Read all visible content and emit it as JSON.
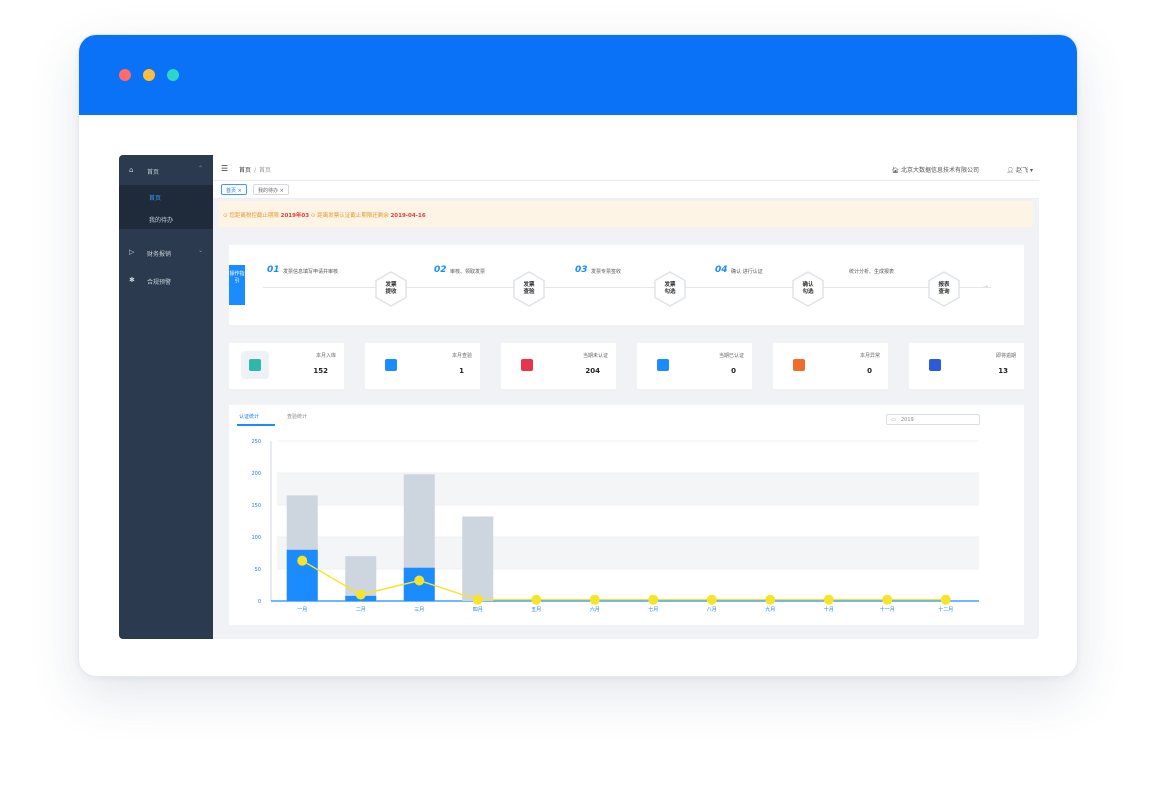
{
  "window": {
    "dots": [
      "#ff6a6a",
      "#ffbd3d",
      "#2fd6c7"
    ],
    "titlebar_color": "#0a72f6"
  },
  "sidebar": {
    "home": {
      "label": "首页",
      "icon": "home-icon"
    },
    "home_children": [
      {
        "label": "首页",
        "active": true
      },
      {
        "label": "我的待办",
        "active": false
      }
    ],
    "items": [
      {
        "label": "财务报销",
        "icon": "receipt-icon"
      },
      {
        "label": "合规预警",
        "icon": "warning-icon"
      }
    ]
  },
  "topbar": {
    "breadcrumb": {
      "home": "首页",
      "sep": "/",
      "current": "首页"
    },
    "company": "北京大数据信息技术有限公司",
    "user": "赵飞"
  },
  "tags": [
    {
      "label": "首页",
      "active": true
    },
    {
      "label": "我的待办",
      "active": false
    }
  ],
  "notice": {
    "text1": "您距离税控截止期限",
    "highlight1": "2019年03",
    "text2": "距离发票认证截止期限还剩余",
    "highlight2": "2019-04-16"
  },
  "flow": {
    "badge": "操作指引",
    "steps": [
      {
        "num": "01",
        "desc": "发票信息填写申请并审核",
        "hex": [
          "发票",
          "提收"
        ]
      },
      {
        "num": "02",
        "desc": "审核、领取发票",
        "hex": [
          "发票",
          "查验"
        ]
      },
      {
        "num": "03",
        "desc": "发票专票签收",
        "hex": [
          "发票",
          "勾选"
        ]
      },
      {
        "num": "04",
        "desc": "确认 进行认证",
        "hex": [
          "确认",
          "勾选"
        ]
      },
      {
        "num": "",
        "desc": "统计分析、生成报表",
        "hex": [
          "报表",
          "查询"
        ]
      }
    ]
  },
  "cards": [
    {
      "label": "本月入库",
      "value": "152",
      "icon": "storage-icon",
      "color": "#2fb8a8",
      "bg": "#eef2f6"
    },
    {
      "label": "本月查验",
      "value": "1",
      "icon": "verify-icon",
      "color": "#1a8cff",
      "bg": "#ffffff"
    },
    {
      "label": "当期未认证",
      "value": "204",
      "icon": "unverified-icon",
      "color": "#e8344e",
      "bg": "#ffffff"
    },
    {
      "label": "当期已认证",
      "value": "0",
      "icon": "verified-icon",
      "color": "#1a8cff",
      "bg": "#ffffff"
    },
    {
      "label": "本月异常",
      "value": "0",
      "icon": "alarm-icon",
      "color": "#f26b2a",
      "bg": "#ffffff"
    },
    {
      "label": "即将逾期",
      "value": "13",
      "icon": "expiring-icon",
      "color": "#2b5bd7",
      "bg": "#ffffff"
    }
  ],
  "chart_tabs": [
    {
      "label": "认证统计",
      "active": true
    },
    {
      "label": "查验统计",
      "active": false
    }
  ],
  "date_filter": {
    "value": "2019",
    "icon": "calendar-icon"
  },
  "chart_data": {
    "type": "bar",
    "categories": [
      "一月",
      "二月",
      "三月",
      "四月",
      "五月",
      "六月",
      "七月",
      "八月",
      "九月",
      "十月",
      "十一月",
      "十二月"
    ],
    "series": [
      {
        "type": "bar",
        "color": "#cdd5df",
        "values": [
          165,
          70,
          198,
          132,
          0,
          0,
          0,
          0,
          0,
          0,
          0,
          0
        ]
      },
      {
        "type": "bar",
        "color": "#1a8cff",
        "values": [
          80,
          8,
          52,
          0,
          0,
          0,
          0,
          0,
          0,
          0,
          0,
          0
        ]
      },
      {
        "type": "line",
        "color": "#f5e42a",
        "values": [
          63,
          10,
          32,
          2,
          2,
          2,
          2,
          2,
          2,
          2,
          2,
          2
        ]
      }
    ],
    "yticks": [
      0,
      50,
      100,
      150,
      200,
      250
    ],
    "ylim": [
      0,
      250
    ],
    "grid": true
  }
}
